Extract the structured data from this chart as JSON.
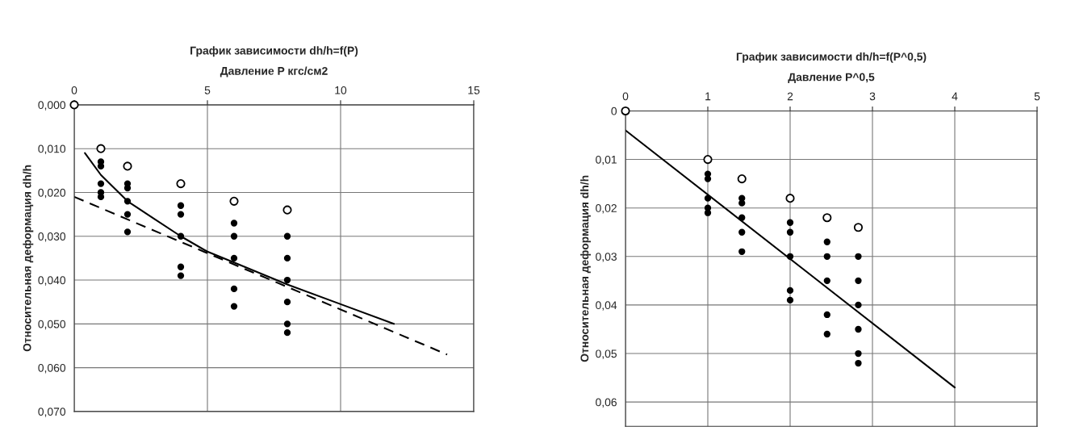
{
  "chart_data": [
    {
      "type": "scatter",
      "title": "График зависимости dh/h=f(P)",
      "xlabel": "Давление P кгс/см2",
      "ylabel": "Относительная деформация dh/h",
      "xlim": [
        0,
        15
      ],
      "xticks": [
        0,
        5,
        10,
        15
      ],
      "ylim": [
        0.07,
        0
      ],
      "yticks": [
        {
          "value": 0,
          "label": "0,000"
        },
        {
          "value": 0.01,
          "label": "0,010"
        },
        {
          "value": 0.02,
          "label": "0,020"
        },
        {
          "value": 0.03,
          "label": "0,030"
        },
        {
          "value": 0.04,
          "label": "0,040"
        },
        {
          "value": 0.05,
          "label": "0,050"
        },
        {
          "value": 0.06,
          "label": "0,060"
        },
        {
          "value": 0.07,
          "label": "0,070"
        }
      ],
      "grid": true,
      "series": [
        {
          "marker": "circle",
          "color": "#ffffff",
          "x": [
            0,
            1,
            2,
            4,
            6,
            8
          ],
          "values": [
            0,
            0.01,
            0.014,
            0.018,
            0.022,
            0.024
          ]
        },
        {
          "marker": "circle",
          "color": "#000000",
          "x": [
            1,
            1,
            1,
            1,
            1,
            2,
            2,
            2,
            2,
            2,
            4,
            4,
            4,
            4,
            4,
            6,
            6,
            6,
            6,
            6,
            8,
            8,
            8,
            8,
            8,
            8
          ],
          "values": [
            0.013,
            0.014,
            0.018,
            0.02,
            0.021,
            0.018,
            0.019,
            0.022,
            0.025,
            0.029,
            0.023,
            0.025,
            0.03,
            0.037,
            0.039,
            0.027,
            0.03,
            0.035,
            0.042,
            0.046,
            0.03,
            0.035,
            0.04,
            0.045,
            0.05,
            0.052
          ]
        },
        {
          "type": "line",
          "color": "#000000",
          "line_style": "solid",
          "x": [
            0.4,
            1,
            2,
            3,
            4,
            5,
            6,
            8,
            10,
            12
          ],
          "values": [
            0.011,
            0.016,
            0.022,
            0.026,
            0.03,
            0.0335,
            0.036,
            0.041,
            0.0455,
            0.05
          ]
        },
        {
          "type": "line",
          "color": "#000000",
          "line_style": "dashed",
          "x": [
            0,
            14
          ],
          "values": [
            0.021,
            0.057
          ]
        }
      ]
    },
    {
      "type": "scatter",
      "title": "График зависимости dh/h=f(P^0,5)",
      "xlabel": "Давление P^0,5",
      "ylabel": "Относительная деформация dh/h",
      "xlim": [
        0,
        5
      ],
      "xticks": [
        0,
        1,
        2,
        3,
        4,
        5
      ],
      "ylim": [
        0.065,
        0
      ],
      "yticks": [
        0,
        {
          "value": 0.01,
          "label": "0,01"
        },
        {
          "value": 0.02,
          "label": "0,02"
        },
        {
          "value": 0.03,
          "label": "0,03"
        },
        {
          "value": 0.04,
          "label": "0,04"
        },
        {
          "value": 0.05,
          "label": "0,05"
        },
        {
          "value": 0.06,
          "label": "0,06"
        }
      ],
      "grid": true,
      "series": [
        {
          "marker": "circle",
          "color": "#ffffff",
          "x": [
            0,
            1,
            1.414,
            2,
            2.449,
            2.828
          ],
          "values": [
            0,
            0.01,
            0.014,
            0.018,
            0.022,
            0.024
          ]
        },
        {
          "marker": "circle",
          "color": "#000000",
          "x": [
            1,
            1,
            1,
            1,
            1,
            1.414,
            1.414,
            1.414,
            1.414,
            1.414,
            2,
            2,
            2,
            2,
            2,
            2.449,
            2.449,
            2.449,
            2.449,
            2.449,
            2.828,
            2.828,
            2.828,
            2.828,
            2.828,
            2.828
          ],
          "values": [
            0.013,
            0.014,
            0.018,
            0.02,
            0.021,
            0.018,
            0.019,
            0.022,
            0.025,
            0.029,
            0.023,
            0.025,
            0.03,
            0.037,
            0.039,
            0.027,
            0.03,
            0.035,
            0.042,
            0.046,
            0.03,
            0.035,
            0.04,
            0.045,
            0.05,
            0.052
          ]
        },
        {
          "type": "line",
          "color": "#000000",
          "line_style": "solid",
          "x": [
            0,
            4
          ],
          "values": [
            0.004,
            0.057
          ]
        }
      ]
    }
  ]
}
